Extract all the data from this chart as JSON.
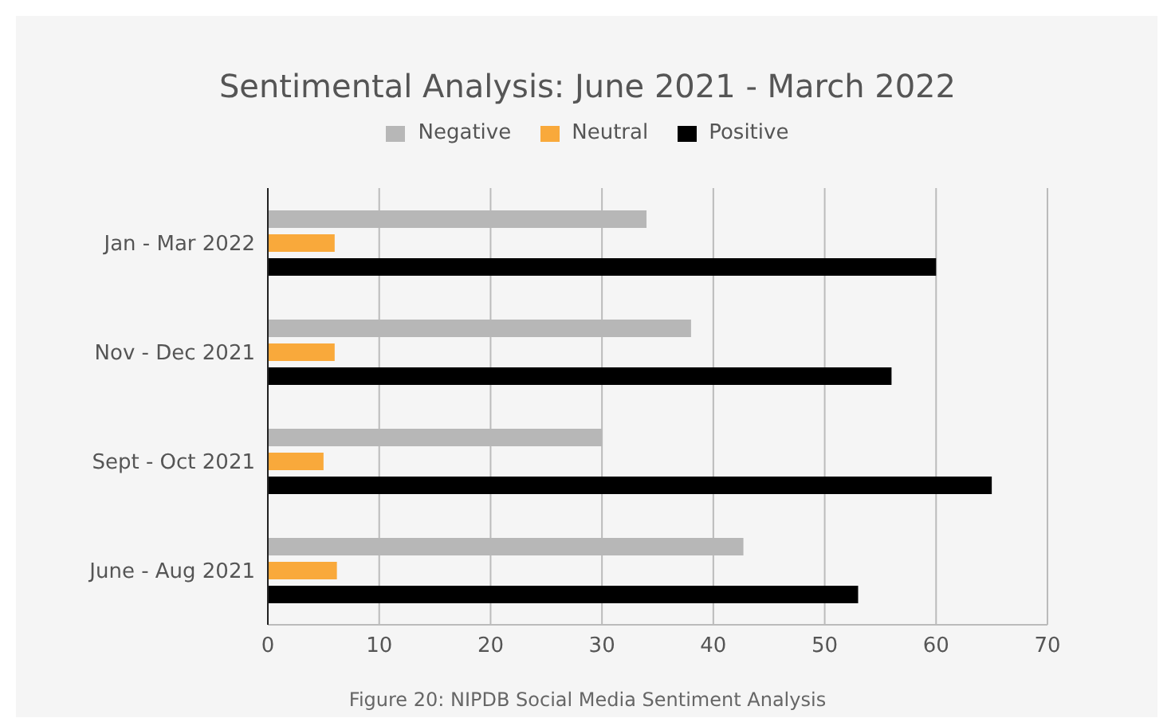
{
  "chart_data": {
    "type": "bar",
    "orientation": "horizontal",
    "title": "Sentimental Analysis: June 2021 - March 2022",
    "categories": [
      "Jan - Mar 2022",
      "Nov - Dec 2021",
      "Sept - Oct 2021",
      "June - Aug 2021"
    ],
    "series": [
      {
        "name": "Negative",
        "color": "#b7b7b7",
        "values": [
          34,
          38,
          30,
          42.7
        ]
      },
      {
        "name": "Neutral",
        "color": "#f9a93b",
        "values": [
          6,
          6,
          5,
          6.2
        ]
      },
      {
        "name": "Positive",
        "color": "#000000",
        "values": [
          60,
          56,
          65,
          53
        ]
      }
    ],
    "xlim": [
      0,
      70
    ],
    "xticks": [
      0,
      10,
      20,
      30,
      40,
      50,
      60,
      70
    ],
    "grid": "x",
    "legend": "top",
    "annotations": [
      "Figure 20: NIPDB Social Media Sentiment Analysis"
    ]
  }
}
